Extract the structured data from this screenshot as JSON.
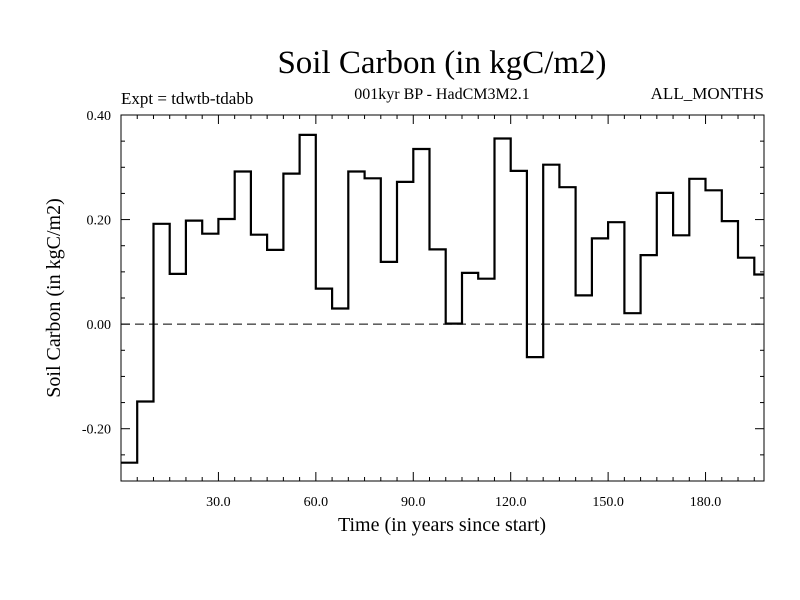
{
  "chart_data": {
    "type": "line",
    "title": "Soil Carbon (in kgC/m2)",
    "subtitle": "001kyr BP - HadCM3M2.1",
    "left_label": "Expt = tdwtb-tdabb",
    "right_label": "ALL_MONTHS",
    "xlabel": "Time (in years since start)",
    "ylabel": "Soil Carbon (in kgC/m2)",
    "xlim": [
      0,
      198
    ],
    "ylim": [
      -0.3,
      0.4
    ],
    "xticks": [
      30,
      60,
      90,
      120,
      150,
      180
    ],
    "xtick_labels": [
      "30.0",
      "60.0",
      "90.0",
      "120.0",
      "150.0",
      "180.0"
    ],
    "yticks": [
      -0.2,
      0.0,
      0.2,
      0.4
    ],
    "ytick_labels": [
      "-0.20",
      "0.00",
      "0.20",
      "0.40"
    ],
    "zero_line": true,
    "step_width": 5,
    "series": [
      {
        "name": "Soil Carbon",
        "values": [
          -0.265,
          -0.148,
          0.192,
          0.096,
          0.198,
          0.173,
          0.201,
          0.292,
          0.171,
          0.142,
          0.288,
          0.362,
          0.068,
          0.03,
          0.292,
          0.279,
          0.119,
          0.272,
          0.335,
          0.143,
          0.001,
          0.098,
          0.087,
          0.355,
          0.293,
          -0.063,
          0.305,
          0.262,
          0.055,
          0.164,
          0.195,
          0.021,
          0.132,
          0.251,
          0.17,
          0.278,
          0.256,
          0.197,
          0.127,
          0.095
        ]
      }
    ]
  }
}
